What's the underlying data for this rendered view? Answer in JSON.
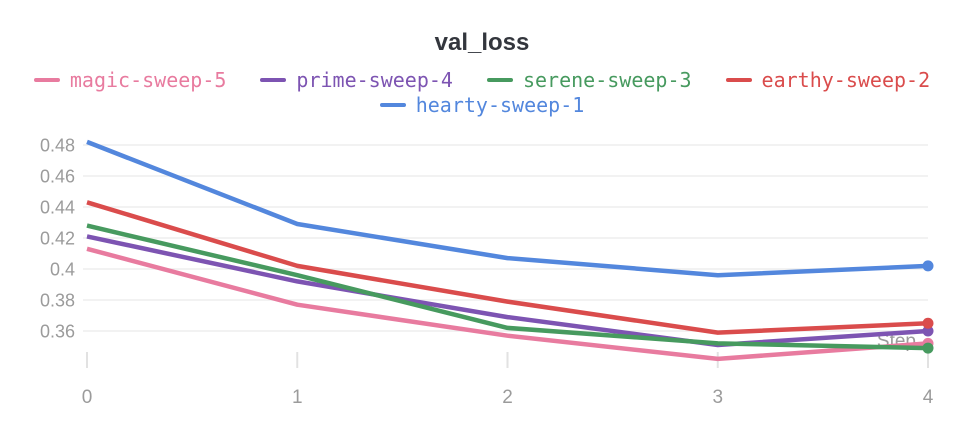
{
  "chart_data": {
    "type": "line",
    "title": "val_loss",
    "xlabel": "Step",
    "ylabel": "",
    "x": [
      0,
      1,
      2,
      3,
      4
    ],
    "series": [
      {
        "name": "magic-sweep-5",
        "color": "#E87B9F",
        "values": [
          0.413,
          0.377,
          0.357,
          0.342,
          0.352
        ]
      },
      {
        "name": "prime-sweep-4",
        "color": "#7D54B2",
        "values": [
          0.421,
          0.392,
          0.369,
          0.351,
          0.36
        ]
      },
      {
        "name": "serene-sweep-3",
        "color": "#479A5F",
        "values": [
          0.428,
          0.396,
          0.362,
          0.352,
          0.349
        ]
      },
      {
        "name": "earthy-sweep-2",
        "color": "#DA4C4C",
        "values": [
          0.443,
          0.402,
          0.379,
          0.359,
          0.365
        ]
      },
      {
        "name": "hearty-sweep-1",
        "color": "#5387DD",
        "values": [
          0.482,
          0.429,
          0.407,
          0.396,
          0.402
        ]
      }
    ],
    "legend_rows": [
      [
        0,
        1,
        2,
        3
      ],
      [
        4
      ]
    ],
    "legend_position": "top",
    "grid": "horizontal",
    "yticks": [
      0.36,
      0.38,
      0.4,
      0.42,
      0.44,
      0.46,
      0.48
    ],
    "xticks": [
      0,
      1,
      2,
      3,
      4
    ],
    "ylim": [
      0.3355,
      0.489
    ],
    "xlim": [
      0,
      4
    ],
    "end_point_marker": true
  },
  "theme": {
    "title_color": "#33363d",
    "axis_label_color": "#9b9b9b",
    "gridline_color": "#ededed",
    "tick_mark_color": "#e2e2e2"
  }
}
